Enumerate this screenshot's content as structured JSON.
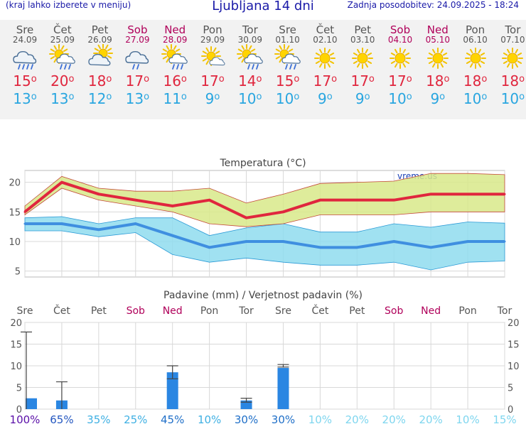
{
  "header": {
    "menu_hint": "(kraj lahko izberete v meniju)",
    "title": "Ljubljana 14 dni",
    "updated": "Zadnja posodobitev: 24.09.2025 - 18:24"
  },
  "colors": {
    "max_temp": "#e0263e",
    "min_temp": "#29a6e0",
    "weekend": "#b0005a",
    "max_band": "#d8e98a",
    "min_band": "#8fdcef",
    "precip_bar": "#2a86e2"
  },
  "days": [
    {
      "name": "Sre",
      "date": "24.09",
      "weekend": false,
      "icon": "rain-cloud-icon",
      "tmax": "15",
      "tmin": "13"
    },
    {
      "name": "Čet",
      "date": "25.09",
      "weekend": false,
      "icon": "sun-rain-cloud-icon",
      "tmax": "20",
      "tmin": "13"
    },
    {
      "name": "Pet",
      "date": "26.09",
      "weekend": false,
      "icon": "sun-cloud-icon",
      "tmax": "18",
      "tmin": "12"
    },
    {
      "name": "Sob",
      "date": "27.09",
      "weekend": true,
      "icon": "cloud-light-rain-icon",
      "tmax": "17",
      "tmin": "13"
    },
    {
      "name": "Ned",
      "date": "28.09",
      "weekend": true,
      "icon": "sun-rain-cloud-icon",
      "tmax": "16",
      "tmin": "11"
    },
    {
      "name": "Pon",
      "date": "29.09",
      "weekend": false,
      "icon": "sun-small-cloud-icon",
      "tmax": "17",
      "tmin": "9"
    },
    {
      "name": "Tor",
      "date": "30.09",
      "weekend": false,
      "icon": "sun-rain-cloud-icon",
      "tmax": "14",
      "tmin": "10"
    },
    {
      "name": "Sre",
      "date": "01.10",
      "weekend": false,
      "icon": "sun-rain-cloud-icon",
      "tmax": "15",
      "tmin": "10"
    },
    {
      "name": "Čet",
      "date": "02.10",
      "weekend": false,
      "icon": "sun-icon",
      "tmax": "17",
      "tmin": "9"
    },
    {
      "name": "Pet",
      "date": "03.10",
      "weekend": false,
      "icon": "sun-icon",
      "tmax": "17",
      "tmin": "9"
    },
    {
      "name": "Sob",
      "date": "04.10",
      "weekend": true,
      "icon": "sun-icon",
      "tmax": "17",
      "tmin": "10"
    },
    {
      "name": "Ned",
      "date": "05.10",
      "weekend": true,
      "icon": "sun-icon",
      "tmax": "18",
      "tmin": "9"
    },
    {
      "name": "Pon",
      "date": "06.10",
      "weekend": false,
      "icon": "sun-icon",
      "tmax": "18",
      "tmin": "10"
    },
    {
      "name": "Tor",
      "date": "07.10",
      "weekend": false,
      "icon": "sun-icon",
      "tmax": "18",
      "tmin": "10"
    }
  ],
  "chart_data": [
    {
      "type": "line",
      "title": "Temperatura (°C)",
      "watermark": "vreme.us",
      "categories": [
        "24.09",
        "25.09",
        "26.09",
        "27.09",
        "28.09",
        "29.09",
        "30.09",
        "01.10",
        "02.10",
        "03.10",
        "04.10",
        "05.10",
        "06.10",
        "07.10"
      ],
      "ylim": [
        4,
        22
      ],
      "yticks": [
        5,
        10,
        15,
        20
      ],
      "grid": true,
      "series": [
        {
          "values": [
            15,
            20,
            18,
            17,
            16,
            17,
            14,
            15,
            17,
            17,
            17,
            18,
            18,
            18
          ],
          "band_low": [
            14.5,
            19,
            17,
            16,
            15,
            13,
            12.5,
            13,
            14.5,
            14.5,
            14.5,
            15,
            15,
            15
          ],
          "band_high": [
            16,
            21,
            19,
            18.5,
            18.5,
            19,
            16.5,
            18,
            19.8,
            20,
            20.2,
            21.5,
            21.5,
            21.3
          ]
        },
        {
          "values": [
            13,
            13,
            12,
            13,
            11,
            9,
            10,
            10,
            9,
            9,
            10,
            9,
            10,
            10
          ],
          "band_low": [
            11.8,
            11.8,
            10.8,
            11.5,
            7.8,
            6.5,
            7.2,
            6.5,
            6,
            6,
            6.5,
            5.2,
            6.5,
            6.7
          ],
          "band_high": [
            14,
            14.2,
            13,
            14,
            14,
            11,
            12.3,
            13,
            11.6,
            11.6,
            13,
            12.4,
            13.3,
            13.1
          ]
        }
      ]
    },
    {
      "type": "bar",
      "title": "Padavine (mm) / Verjetnost padavin (%)",
      "categories": [
        "Sre",
        "Čet",
        "Pet",
        "Sob",
        "Ned",
        "Pon",
        "Tor",
        "Sre",
        "Čet",
        "Pet",
        "Sob",
        "Ned",
        "Pon",
        "Tor"
      ],
      "weekend": [
        false,
        false,
        false,
        true,
        true,
        false,
        false,
        false,
        false,
        false,
        true,
        true,
        false,
        false
      ],
      "ylim": [
        0,
        20
      ],
      "yticks": [
        0,
        5,
        10,
        15,
        20
      ],
      "grid": true,
      "values": [
        2.5,
        2,
        0,
        0,
        8.5,
        0,
        2,
        9.5,
        0,
        0,
        0,
        0,
        0,
        0
      ],
      "ranges": [
        [
          0,
          17.8
        ],
        [
          0,
          6.3
        ],
        null,
        null,
        [
          7,
          10
        ],
        null,
        [
          1.6,
          2.5
        ],
        [
          9.7,
          10.3
        ],
        null,
        null,
        null,
        null,
        null,
        null
      ],
      "probability": [
        "100%",
        "65%",
        "35%",
        "25%",
        "45%",
        "10%",
        "30%",
        "30%",
        "10%",
        "20%",
        "20%",
        "20%",
        "10%",
        "15%"
      ],
      "probability_colors": [
        "#5a0fa8",
        "#2457c0",
        "#3fb0e3",
        "#3fb0e3",
        "#1f6fc8",
        "#3fb0e3",
        "#1f6fc8",
        "#1f6fc8",
        "#7fd6ef",
        "#7fd6ef",
        "#7fd6ef",
        "#7fd6ef",
        "#7fd6ef",
        "#7fd6ef"
      ]
    }
  ]
}
